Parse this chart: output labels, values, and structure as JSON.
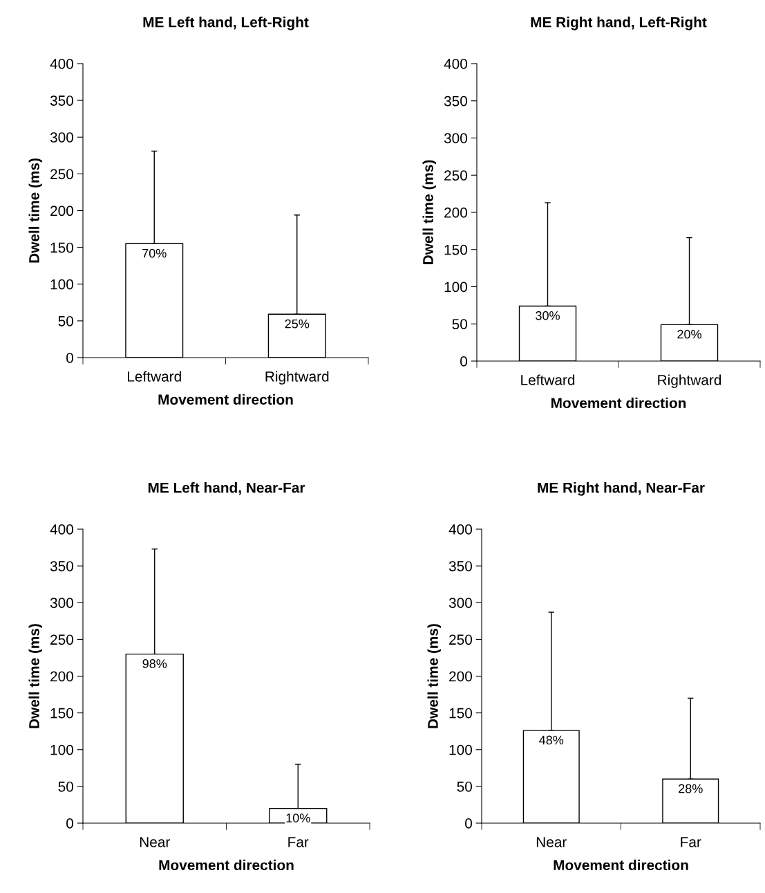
{
  "chart_data": [
    {
      "type": "bar",
      "title": "ME Left hand, Left-Right",
      "xlabel": "Movement direction",
      "ylabel": "Dwell time (ms)",
      "categories": [
        "Leftward",
        "Rightward"
      ],
      "values": [
        155,
        59
      ],
      "errors": [
        [
          155,
          281
        ],
        [
          59,
          194
        ]
      ],
      "annotations": [
        {
          "text": "70%",
          "x": "Leftward",
          "y": 155
        },
        {
          "text": "25%",
          "x": "Rightward",
          "y": 59
        }
      ],
      "color": "#ffffff",
      "ylim": [
        0,
        400
      ],
      "yticks": [
        0,
        50,
        100,
        150,
        200,
        250,
        300,
        350,
        400
      ],
      "grid": false,
      "legend": false
    },
    {
      "type": "bar",
      "title": "ME Right hand, Left-Right",
      "xlabel": "Movement direction",
      "ylabel": "Dwell time (ms)",
      "categories": [
        "Leftward",
        "Rightward"
      ],
      "values": [
        74,
        49
      ],
      "errors": [
        [
          74,
          213
        ],
        [
          49,
          166
        ]
      ],
      "annotations": [
        {
          "text": "30%",
          "x": "Leftward",
          "y": 74
        },
        {
          "text": "20%",
          "x": "Rightward",
          "y": 49
        }
      ],
      "color": "#ffffff",
      "ylim": [
        0,
        400
      ],
      "yticks": [
        0,
        50,
        100,
        150,
        200,
        250,
        300,
        350,
        400
      ],
      "grid": false,
      "legend": false
    },
    {
      "type": "bar",
      "title": "ME Left hand, Near-Far",
      "xlabel": "Movement direction",
      "ylabel": "Dwell time (ms)",
      "categories": [
        "Near",
        "Far"
      ],
      "values": [
        230,
        20
      ],
      "errors": [
        [
          230,
          373
        ],
        [
          20,
          80
        ]
      ],
      "annotations": [
        {
          "text": "98%",
          "x": "Near",
          "y": 230
        },
        {
          "text": "10%",
          "x": "Far",
          "y": 20
        }
      ],
      "color": "#ffffff",
      "ylim": [
        0,
        400
      ],
      "yticks": [
        0,
        50,
        100,
        150,
        200,
        250,
        300,
        350,
        400
      ],
      "grid": false,
      "legend": false
    },
    {
      "type": "bar",
      "title": "ME Right hand, Near-Far",
      "xlabel": "Movement direction",
      "ylabel": "Dwell time (ms)",
      "categories": [
        "Near",
        "Far"
      ],
      "values": [
        126,
        60
      ],
      "errors": [
        [
          126,
          287
        ],
        [
          60,
          170
        ]
      ],
      "annotations": [
        {
          "text": "48%",
          "x": "Near",
          "y": 126
        },
        {
          "text": "28%",
          "x": "Far",
          "y": 60
        }
      ],
      "color": "#ffffff",
      "ylim": [
        0,
        400
      ],
      "yticks": [
        0,
        50,
        100,
        150,
        200,
        250,
        300,
        350,
        400
      ],
      "grid": false,
      "legend": false
    }
  ]
}
